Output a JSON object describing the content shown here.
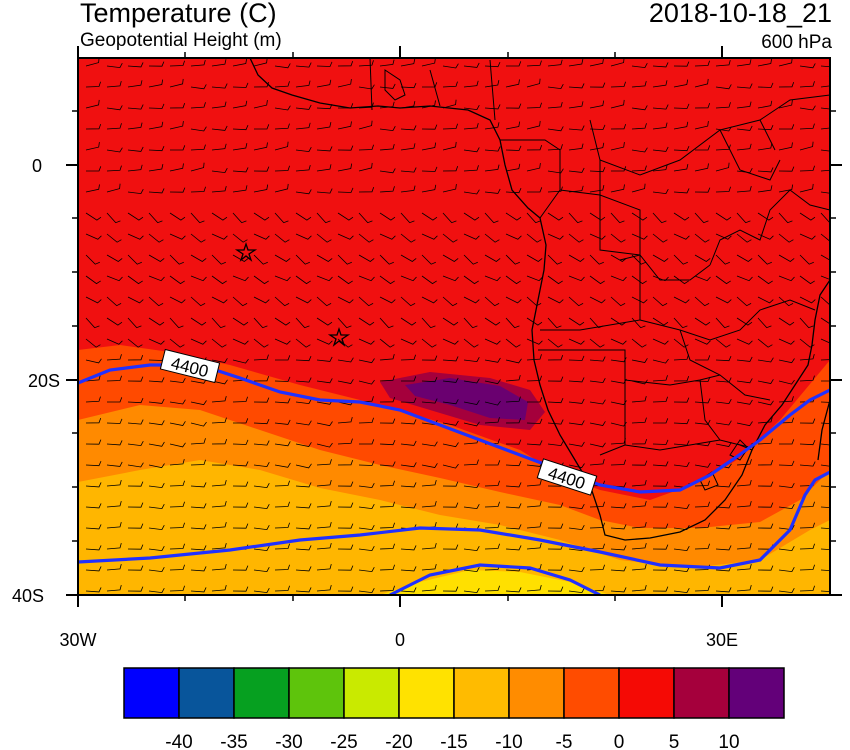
{
  "header": {
    "title": "Temperature (C)",
    "subtitle": "Geopotential Height (m)",
    "datetime": "2018-10-18_21",
    "level": "600 hPa"
  },
  "axes": {
    "x_ticks": [
      "30W",
      "0",
      "30E"
    ],
    "y_ticks": [
      "0",
      "20S",
      "40S"
    ]
  },
  "contours": {
    "label_1": "4400",
    "label_2": "4400",
    "line_color": "#2030ff"
  },
  "colorbar": {
    "colors": [
      "#0000ff",
      "#08559b",
      "#06a020",
      "#5ec40c",
      "#c9ea00",
      "#ffe200",
      "#ffbb00",
      "#ff8c00",
      "#ff4c00",
      "#f50a05",
      "#a5003c",
      "#630079"
    ],
    "labels": [
      "-40",
      "-35",
      "-30",
      "-25",
      "-20",
      "-15",
      "-10",
      "-5",
      "0",
      "5",
      "10"
    ]
  },
  "colors": {
    "warm": "#f01010",
    "orange_red": "#ff4a00",
    "orange": "#ff8a00",
    "light_orange": "#ffb600",
    "yellow": "#ffe000",
    "maroon": "#a5003c",
    "purple": "#6a0070",
    "land_outline": "#000000"
  }
}
